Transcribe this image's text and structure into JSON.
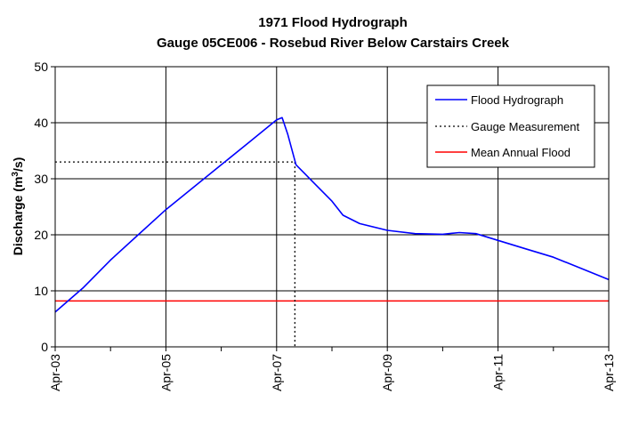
{
  "chart_data": {
    "type": "line",
    "title": "1971 Flood Hydrograph",
    "subtitle": "Gauge 05CE006 - Rosebud River Below Carstairs Creek",
    "ylabel": "Discharge (m³/s)",
    "ylabel_main": "Discharge (m",
    "ylabel_sup": "3",
    "ylabel_tail": "/s)",
    "xlabel": "",
    "x_ticks": [
      "Apr-03",
      "Apr-05",
      "Apr-07",
      "Apr-09",
      "Apr-11",
      "Apr-13"
    ],
    "x_unit": "day of April 1971",
    "xlim": [
      3,
      13
    ],
    "ylim": [
      0,
      50
    ],
    "y_ticks": [
      0,
      10,
      20,
      30,
      40,
      50
    ],
    "grid": true,
    "legend_position": "top-right",
    "series": [
      {
        "name": "Flood Hydrograph",
        "color": "#0000ff",
        "style": "solid",
        "x": [
          3.0,
          3.5,
          4.0,
          4.5,
          5.0,
          5.5,
          6.0,
          6.5,
          7.0,
          7.1,
          7.2,
          7.35,
          7.5,
          7.7,
          8.0,
          8.2,
          8.5,
          9.0,
          9.5,
          10.0,
          10.3,
          10.6,
          11.0,
          11.5,
          12.0,
          12.5,
          13.0
        ],
        "y": [
          6.2,
          10.5,
          15.5,
          20.0,
          24.5,
          28.5,
          32.5,
          36.5,
          40.5,
          40.9,
          38.0,
          32.5,
          31.0,
          29.0,
          26.0,
          23.5,
          22.0,
          20.8,
          20.2,
          20.1,
          20.4,
          20.2,
          19.0,
          17.5,
          16.0,
          14.0,
          12.0
        ]
      },
      {
        "name": "Gauge Measurement",
        "color": "#000000",
        "style": "dotted",
        "x": [
          7.33
        ],
        "y": [
          33.0
        ]
      },
      {
        "name": "Mean Annual Flood",
        "color": "#ff0000",
        "style": "solid",
        "x": [
          3,
          13
        ],
        "y": [
          8.2,
          8.2
        ]
      }
    ]
  }
}
